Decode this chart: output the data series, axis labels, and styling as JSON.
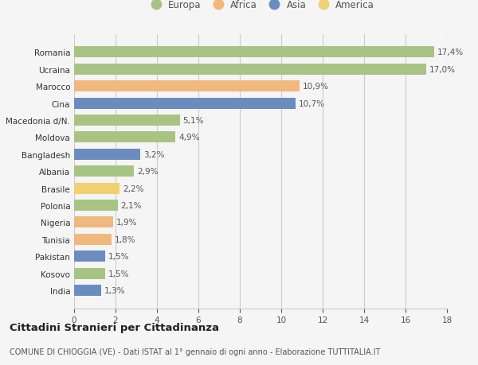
{
  "countries": [
    "Romania",
    "Ucraina",
    "Marocco",
    "Cina",
    "Macedonia d/N.",
    "Moldova",
    "Bangladesh",
    "Albania",
    "Brasile",
    "Polonia",
    "Nigeria",
    "Tunisia",
    "Pakistan",
    "Kosovo",
    "India"
  ],
  "values": [
    17.4,
    17.0,
    10.9,
    10.7,
    5.1,
    4.9,
    3.2,
    2.9,
    2.2,
    2.1,
    1.9,
    1.8,
    1.5,
    1.5,
    1.3
  ],
  "labels": [
    "17,4%",
    "17,0%",
    "10,9%",
    "10,7%",
    "5,1%",
    "4,9%",
    "3,2%",
    "2,9%",
    "2,2%",
    "2,1%",
    "1,9%",
    "1,8%",
    "1,5%",
    "1,5%",
    "1,3%"
  ],
  "continents": [
    "Europa",
    "Europa",
    "Africa",
    "Asia",
    "Europa",
    "Europa",
    "Asia",
    "Europa",
    "America",
    "Europa",
    "Africa",
    "Africa",
    "Asia",
    "Europa",
    "Asia"
  ],
  "continent_colors": {
    "Europa": "#a8c484",
    "Africa": "#f0b87c",
    "Asia": "#6b8cbf",
    "America": "#f0d070"
  },
  "legend_order": [
    "Europa",
    "Africa",
    "Asia",
    "America"
  ],
  "title": "Cittadini Stranieri per Cittadinanza",
  "subtitle": "COMUNE DI CHIOGGIA (VE) - Dati ISTAT al 1° gennaio di ogni anno - Elaborazione TUTTITALIA.IT",
  "xlim": [
    0,
    18
  ],
  "xticks": [
    0,
    2,
    4,
    6,
    8,
    10,
    12,
    14,
    16,
    18
  ],
  "background_color": "#f5f5f5",
  "grid_color": "#cccccc"
}
